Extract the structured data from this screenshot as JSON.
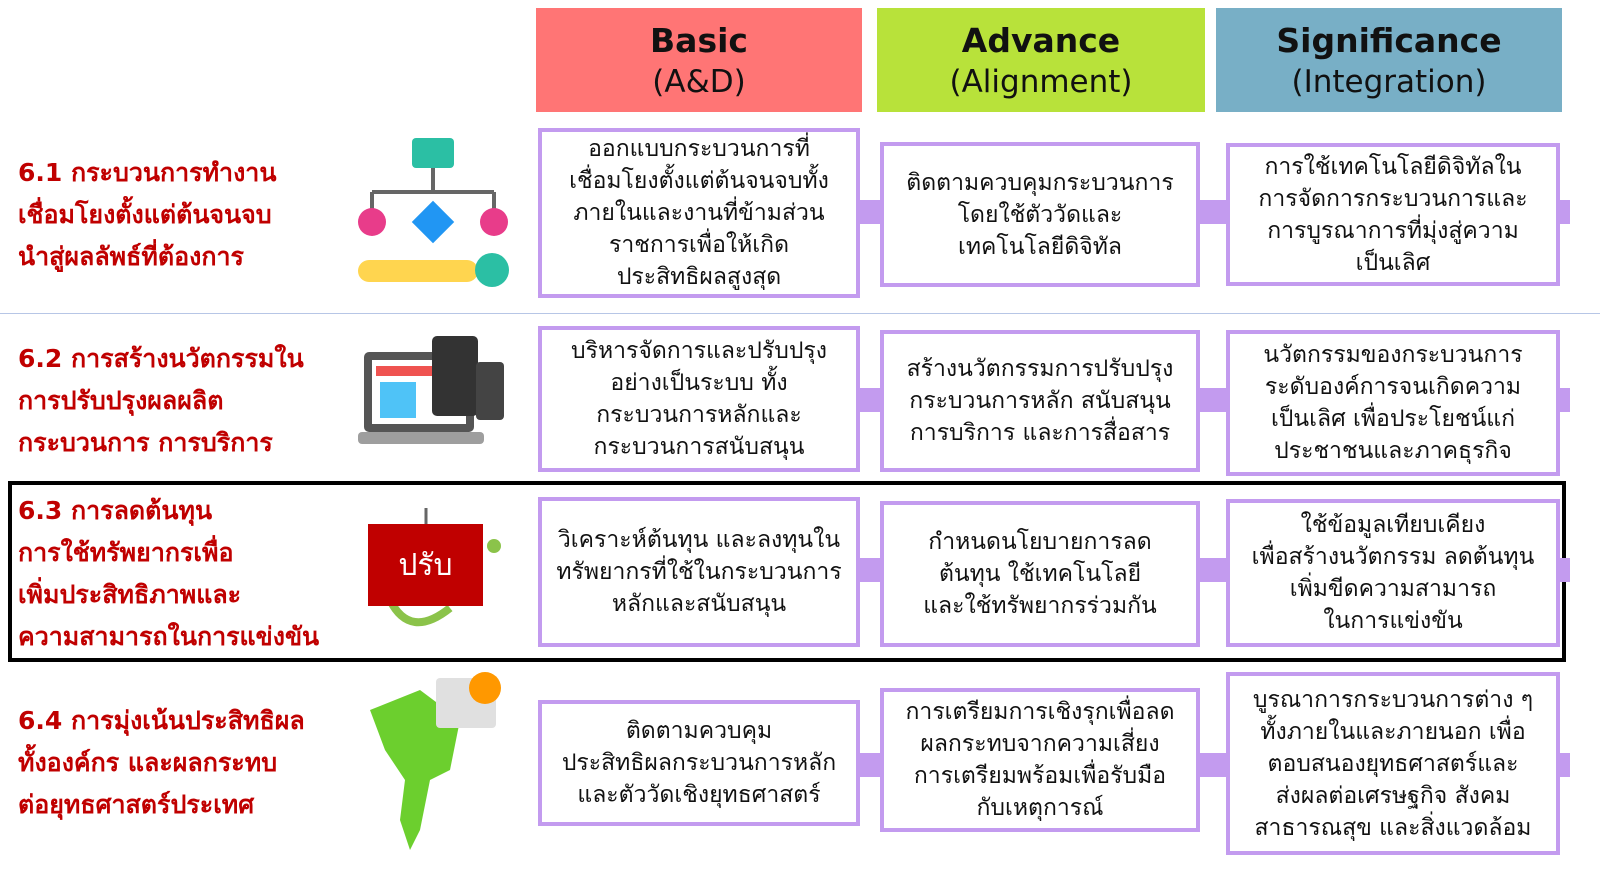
{
  "header": {
    "columns": [
      {
        "title": "Basic",
        "subtitle": "(A&D)"
      },
      {
        "title": "Advance",
        "subtitle": "(Alignment)"
      },
      {
        "title": "Significance",
        "subtitle": "(Integration)"
      }
    ]
  },
  "rows": [
    {
      "label": [
        "6.1 กระบวนการทำงาน",
        "เชื่อมโยงตั้งแต่ต้นจนจบ",
        "นำสู่ผลลัพธ์ที่ต้องการ"
      ],
      "cells": [
        [
          "ออกแบบกระบวนการที่",
          "เชื่อมโยงตั้งแต่ต้นจนจบทั้ง",
          "ภายในและงานที่ข้ามส่วน",
          "ราชการเพื่อให้เกิด",
          "ประสิทธิผลสูงสุด"
        ],
        [
          "ติดตามควบคุมกระบวนการ",
          "โดยใช้ตัววัดและ",
          "เทคโนโลยีดิจิทัล"
        ],
        [
          "การใช้เทคโนโลยีดิจิทัลใน",
          "การจัดการกระบวนการและ",
          "การบูรณาการที่มุ่งสู่ความ",
          "เป็นเลิศ"
        ]
      ]
    },
    {
      "label": [
        "6.2 การสร้างนวัตกรรมใน",
        "การปรับปรุงผลผลิต",
        "กระบวนการ การบริการ"
      ],
      "cells": [
        [
          "บริหารจัดการและปรับปรุง",
          "อย่างเป็นระบบ ทั้ง",
          "กระบวนการหลักและ",
          "กระบวนการสนับสนุน"
        ],
        [
          "สร้างนวัตกรรมการปรับปรุง",
          "กระบวนการหลัก สนับสนุน",
          "การบริการ และการสื่อสาร"
        ],
        [
          "นวัตกรรมของกระบวนการ",
          "ระดับองค์การจนเกิดความ",
          "เป็นเลิศ เพื่อประโยชน์แก่",
          "ประชาชนและภาคธุรกิจ"
        ]
      ]
    },
    {
      "label": [
        "6.3 การลดต้นทุน",
        "การใช้ทรัพยากรเพื่อ",
        "เพิ่มประสิทธิภาพและ",
        "ความสามารถในการแข่งขัน"
      ],
      "badge": "ปรับ",
      "cells": [
        [
          "วิเคราะห์ต้นทุน และลงทุนใน",
          "ทรัพยากรที่ใช้ในกระบวนการ",
          "หลักและสนับสนุน"
        ],
        [
          "กำหนดนโยบายการลด",
          "ต้นทุน ใช้เทคโนโลยี",
          "และใช้ทรัพยากรร่วมกัน"
        ],
        [
          "ใช้ข้อมูลเทียบเคียง",
          "เพื่อสร้างนวัตกรรม ลดต้นทุน",
          "เพิ่มขีดความสามารถ",
          "ในการแข่งขัน"
        ]
      ]
    },
    {
      "label": [
        "6.4 การมุ่งเน้นประสิทธิผล",
        "ทั้งองค์กร และผลกระทบ",
        "ต่อยุทธศาสตร์ประเทศ"
      ],
      "cells": [
        [
          "ติดตามควบคุม",
          "ประสิทธิผลกระบวนการหลัก",
          "และตัววัดเชิงยุทธศาสตร์"
        ],
        [
          "การเตรียมการเชิงรุกเพื่อลด",
          "ผลกระทบจากความเสี่ยง",
          "การเตรียมพร้อมเพื่อรับมือ",
          "กับเหตุการณ์"
        ],
        [
          "บูรณาการกระบวนการต่าง ๆ",
          "ทั้งภายในและภายนอก เพื่อ",
          "ตอบสนองยุทธศาสตร์และ",
          "ส่งผลต่อเศรษฐกิจ สังคม",
          "สาธารณสุข และสิ่งแวดล้อม"
        ]
      ]
    }
  ]
}
